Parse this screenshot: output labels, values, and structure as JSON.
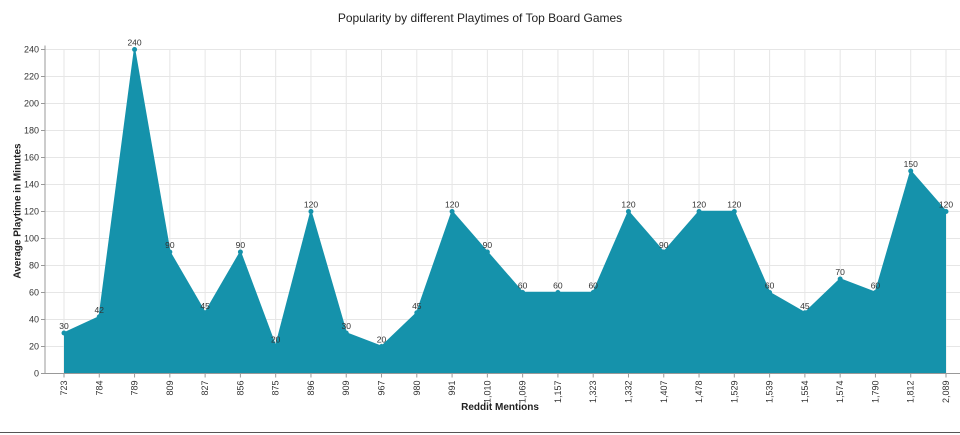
{
  "chart_data": {
    "type": "area",
    "title": "Popularity by different Playtimes of Top Board Games",
    "xlabel": "Reddit Mentions",
    "ylabel": "Average Playtime in Minutes",
    "categories": [
      "723",
      "784",
      "789",
      "809",
      "827",
      "856",
      "875",
      "896",
      "909",
      "967",
      "980",
      "991",
      "1,010",
      "1,069",
      "1,157",
      "1,323",
      "1,332",
      "1,407",
      "1,478",
      "1,529",
      "1,539",
      "1,554",
      "1,574",
      "1,790",
      "1,812",
      "2,089"
    ],
    "values": [
      30,
      42,
      240,
      90,
      45,
      90,
      20,
      120,
      30,
      20,
      45,
      120,
      90,
      60,
      60,
      60,
      120,
      90,
      120,
      120,
      60,
      45,
      70,
      60,
      150,
      120
    ],
    "yticks": [
      0,
      20,
      40,
      60,
      80,
      100,
      120,
      140,
      160,
      180,
      200,
      220,
      240
    ],
    "ylim": [
      0,
      240
    ],
    "grid": true,
    "legend": "none",
    "fill_color": "#1592ab",
    "grid_color": "#e6e6e6",
    "axis_color": "#999999"
  }
}
